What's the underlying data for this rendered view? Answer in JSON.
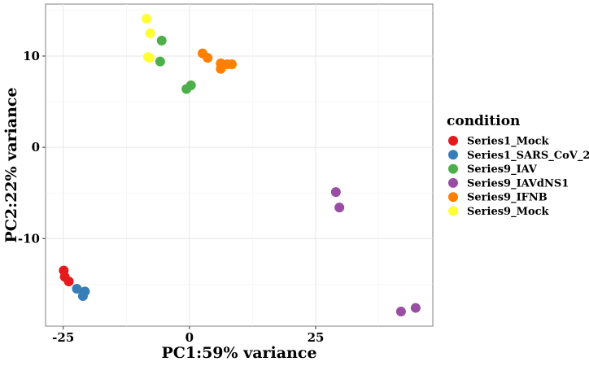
{
  "chart_data": {
    "type": "scatter",
    "title": "",
    "xlabel": "PC1:59% variance",
    "ylabel": "PC2:22% variance",
    "xlim": [
      -28.5,
      48.2
    ],
    "ylim": [
      -19.6,
      15.7
    ],
    "x_ticks": [
      -25,
      0,
      25
    ],
    "y_ticks": [
      -10,
      0,
      10
    ],
    "x_tick_labels": [
      "-25",
      "0",
      "25"
    ],
    "y_tick_labels": [
      "-10",
      "0",
      "10"
    ],
    "grid": true,
    "legend_title": "condition",
    "legend_position": "right",
    "series": [
      {
        "name": "Series1_Mock",
        "color": "#E41A1C",
        "points": [
          [
            -24.9,
            -13.5
          ],
          [
            -24.7,
            -14.2
          ],
          [
            -23.9,
            -14.7
          ]
        ]
      },
      {
        "name": "Series1_SARS_CoV_2",
        "color": "#377EB8",
        "points": [
          [
            -22.3,
            -15.5
          ],
          [
            -21.1,
            -16.3
          ],
          [
            -20.7,
            -15.8
          ]
        ]
      },
      {
        "name": "Series9_IAV",
        "color": "#4DAF4A",
        "points": [
          [
            -5.5,
            11.7
          ],
          [
            -5.8,
            9.4
          ],
          [
            -0.6,
            6.4
          ],
          [
            0.3,
            6.8
          ]
        ]
      },
      {
        "name": "Series9_IAVdNS1",
        "color": "#984EA3",
        "points": [
          [
            29.0,
            -4.9
          ],
          [
            29.7,
            -6.6
          ],
          [
            41.9,
            -18.0
          ],
          [
            44.8,
            -17.6
          ]
        ]
      },
      {
        "name": "Series9_IFNB",
        "color": "#FF7F00",
        "points": [
          [
            2.6,
            10.3
          ],
          [
            3.6,
            9.8
          ],
          [
            6.2,
            9.2
          ],
          [
            6.2,
            8.6
          ],
          [
            7.5,
            9.1
          ],
          [
            8.4,
            9.1
          ]
        ]
      },
      {
        "name": "Series9_Mock",
        "color": "#FFFF33",
        "points": [
          [
            -8.5,
            14.1
          ],
          [
            -7.8,
            12.5
          ],
          [
            -8.2,
            9.9
          ],
          [
            -7.9,
            9.8
          ]
        ]
      }
    ]
  }
}
